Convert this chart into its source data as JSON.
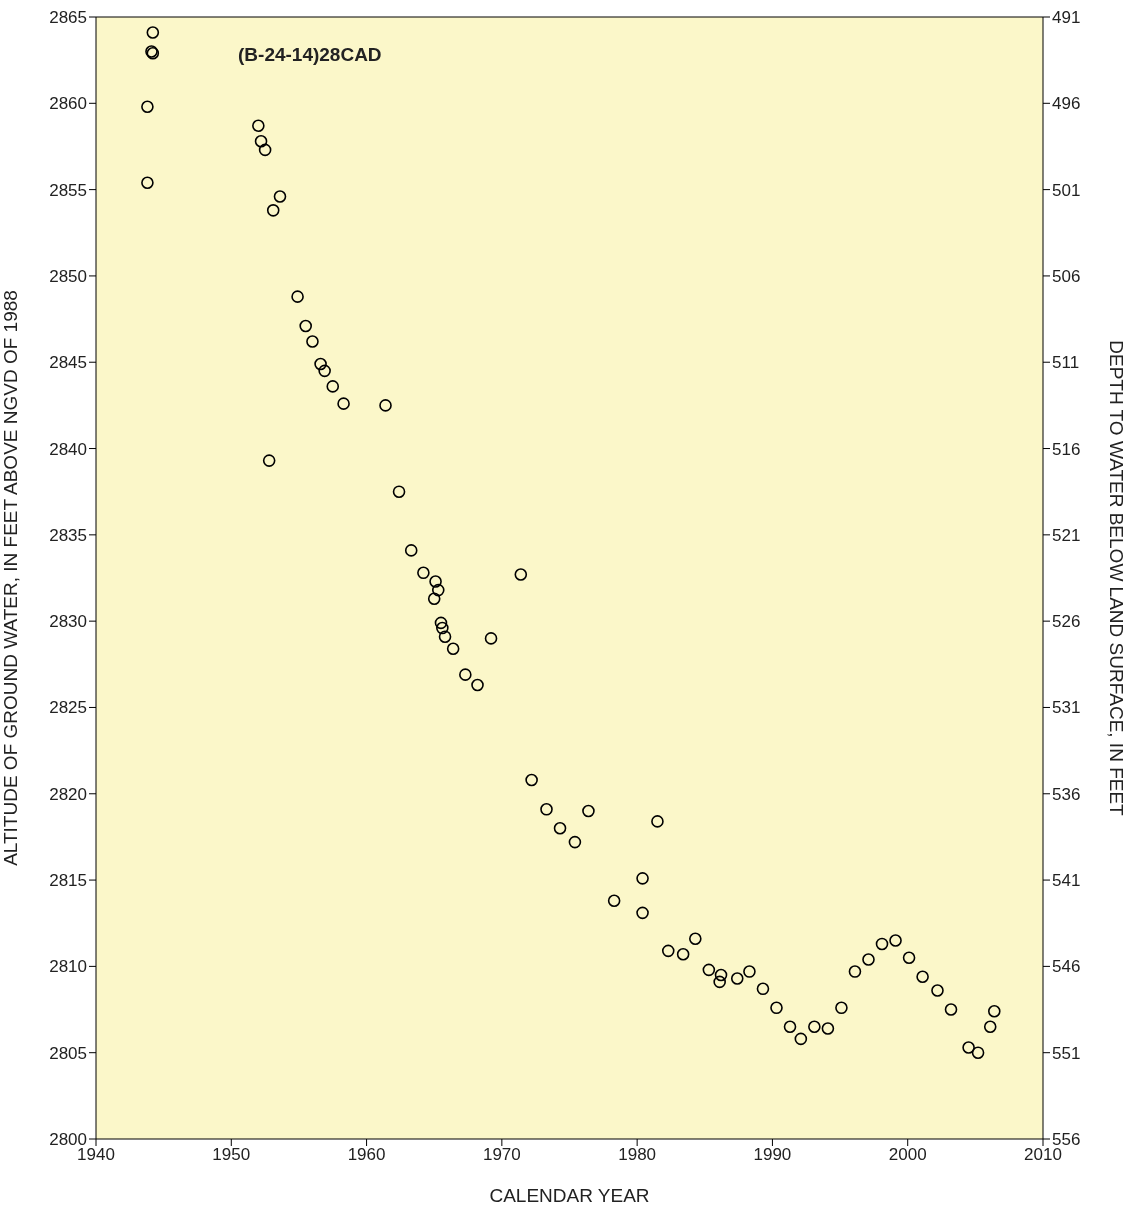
{
  "chart_data": {
    "type": "scatter",
    "xlabel": "CALENDAR YEAR",
    "ylabel": "ALTITUDE OF GROUND WATER, IN FEET ABOVE NGVD OF 1988",
    "y2label": "DEPTH TO WATER BELOW LAND SURFACE, IN FEET",
    "annotations": [
      "(B-24-14)28CAD"
    ],
    "xlim": [
      1940,
      2010
    ],
    "xticks": [
      1940,
      1950,
      1960,
      1970,
      1980,
      1990,
      2000,
      2010
    ],
    "ylim": [
      2800,
      2865
    ],
    "yticks": [
      2800,
      2805,
      2810,
      2815,
      2820,
      2825,
      2830,
      2835,
      2840,
      2845,
      2850,
      2855,
      2860,
      2865
    ],
    "y2lim": [
      556,
      491
    ],
    "y2ticks": [
      556,
      551,
      546,
      541,
      536,
      531,
      526,
      521,
      516,
      511,
      506,
      501,
      496,
      491
    ],
    "marker": "circle",
    "grid": false,
    "series": [
      {
        "color": "#000000",
        "x": [
          1944.2,
          1944.1,
          1944.2,
          1943.8,
          1943.8,
          1952.0,
          1952.2,
          1952.5,
          1953.6,
          1953.1,
          1952.8,
          1954.9,
          1955.5,
          1956.0,
          1956.6,
          1956.9,
          1957.5,
          1958.3,
          1961.4,
          1962.4,
          1963.3,
          1964.2,
          1965.1,
          1965.3,
          1965.0,
          1965.5,
          1965.6,
          1965.8,
          1966.4,
          1967.3,
          1968.2,
          1969.2,
          1971.4,
          1972.2,
          1973.3,
          1974.3,
          1975.4,
          1976.4,
          1978.3,
          1980.4,
          1980.4,
          1981.5,
          1982.3,
          1983.4,
          1984.3,
          1985.3,
          1986.2,
          1986.1,
          1987.4,
          1988.3,
          1989.3,
          1990.3,
          1991.3,
          1992.1,
          1993.1,
          1994.1,
          1995.1,
          1996.1,
          1997.1,
          1998.1,
          1999.1,
          2000.1,
          2001.1,
          2002.2,
          2003.2,
          2004.5,
          2005.2,
          2006.1,
          2006.4
        ],
        "values": [
          2864.1,
          2863.0,
          2862.9,
          2859.8,
          2855.4,
          2858.7,
          2857.8,
          2857.3,
          2854.6,
          2853.8,
          2839.3,
          2848.8,
          2847.1,
          2846.2,
          2844.9,
          2844.5,
          2843.6,
          2842.6,
          2842.5,
          2837.5,
          2834.1,
          2832.8,
          2832.3,
          2831.8,
          2831.3,
          2829.9,
          2829.6,
          2829.1,
          2828.4,
          2826.9,
          2826.3,
          2829.0,
          2832.7,
          2820.8,
          2819.1,
          2818.0,
          2817.2,
          2819.0,
          2813.8,
          2815.1,
          2813.1,
          2818.4,
          2810.9,
          2810.7,
          2811.6,
          2809.8,
          2809.5,
          2809.1,
          2809.3,
          2809.7,
          2808.7,
          2807.6,
          2806.5,
          2805.8,
          2806.5,
          2806.4,
          2807.6,
          2809.7,
          2810.4,
          2811.3,
          2811.5,
          2810.5,
          2809.4,
          2808.6,
          2807.5,
          2805.3,
          2805.0,
          2806.5,
          2807.4
        ]
      }
    ]
  }
}
